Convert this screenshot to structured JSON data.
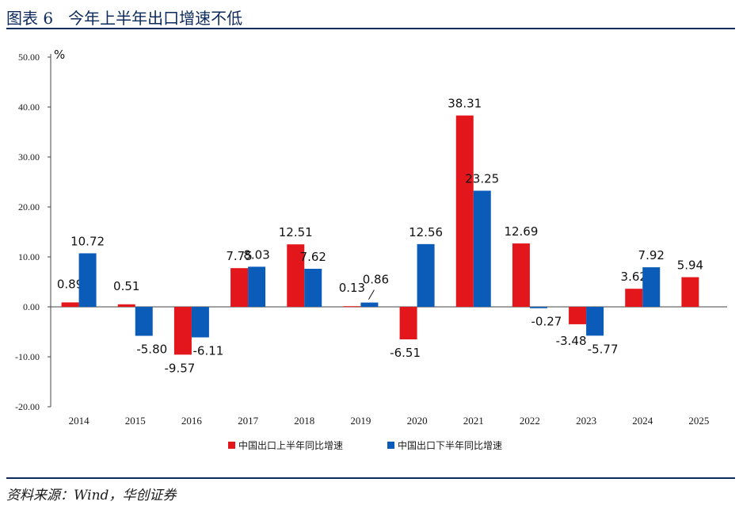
{
  "header": {
    "title": "图表 6   今年上半年出口增速不低"
  },
  "source": "资料来源：Wind，华创证券",
  "colors": {
    "series1": "#e3161b",
    "series2": "#0b5cb8",
    "axis": "#444444",
    "rule": "#0d2a5c"
  },
  "chart_data": {
    "type": "bar",
    "title": "今年上半年出口增速不低",
    "ylabel": "%",
    "xlabel": "",
    "ylim": [
      -20,
      50
    ],
    "yticks": [
      "50.00",
      "40.00",
      "30.00",
      "20.00",
      "10.00",
      "0.00",
      "-10.00",
      "-20.00"
    ],
    "ytick_values": [
      50,
      40,
      30,
      20,
      10,
      0,
      -10,
      -20
    ],
    "categories": [
      "2014",
      "2015",
      "2016",
      "2017",
      "2018",
      "2019",
      "2020",
      "2021",
      "2022",
      "2023",
      "2024",
      "2025"
    ],
    "legend_position": "bottom",
    "grid": false,
    "series": [
      {
        "name": "中国出口上半年同比增速",
        "values": [
          0.89,
          0.51,
          -9.57,
          7.75,
          12.51,
          0.13,
          -6.51,
          38.31,
          12.69,
          -3.48,
          3.62,
          5.94
        ],
        "labels": [
          "0.89",
          "0.51",
          "-9.57",
          "7.75",
          "12.51",
          "0.13",
          "-6.51",
          "38.31",
          "12.69",
          "-3.48",
          "3.62",
          "5.94"
        ]
      },
      {
        "name": "中国出口下半年同比增速",
        "values": [
          10.72,
          -5.8,
          -6.11,
          8.03,
          7.62,
          0.86,
          12.56,
          23.25,
          -0.27,
          -5.77,
          7.92,
          null
        ],
        "labels": [
          "10.72",
          "-5.80",
          "-6.11",
          "8.03",
          "7.62",
          "0.86",
          "12.56",
          "23.25",
          "-0.27",
          "-5.77",
          "7.92",
          null
        ]
      }
    ]
  }
}
